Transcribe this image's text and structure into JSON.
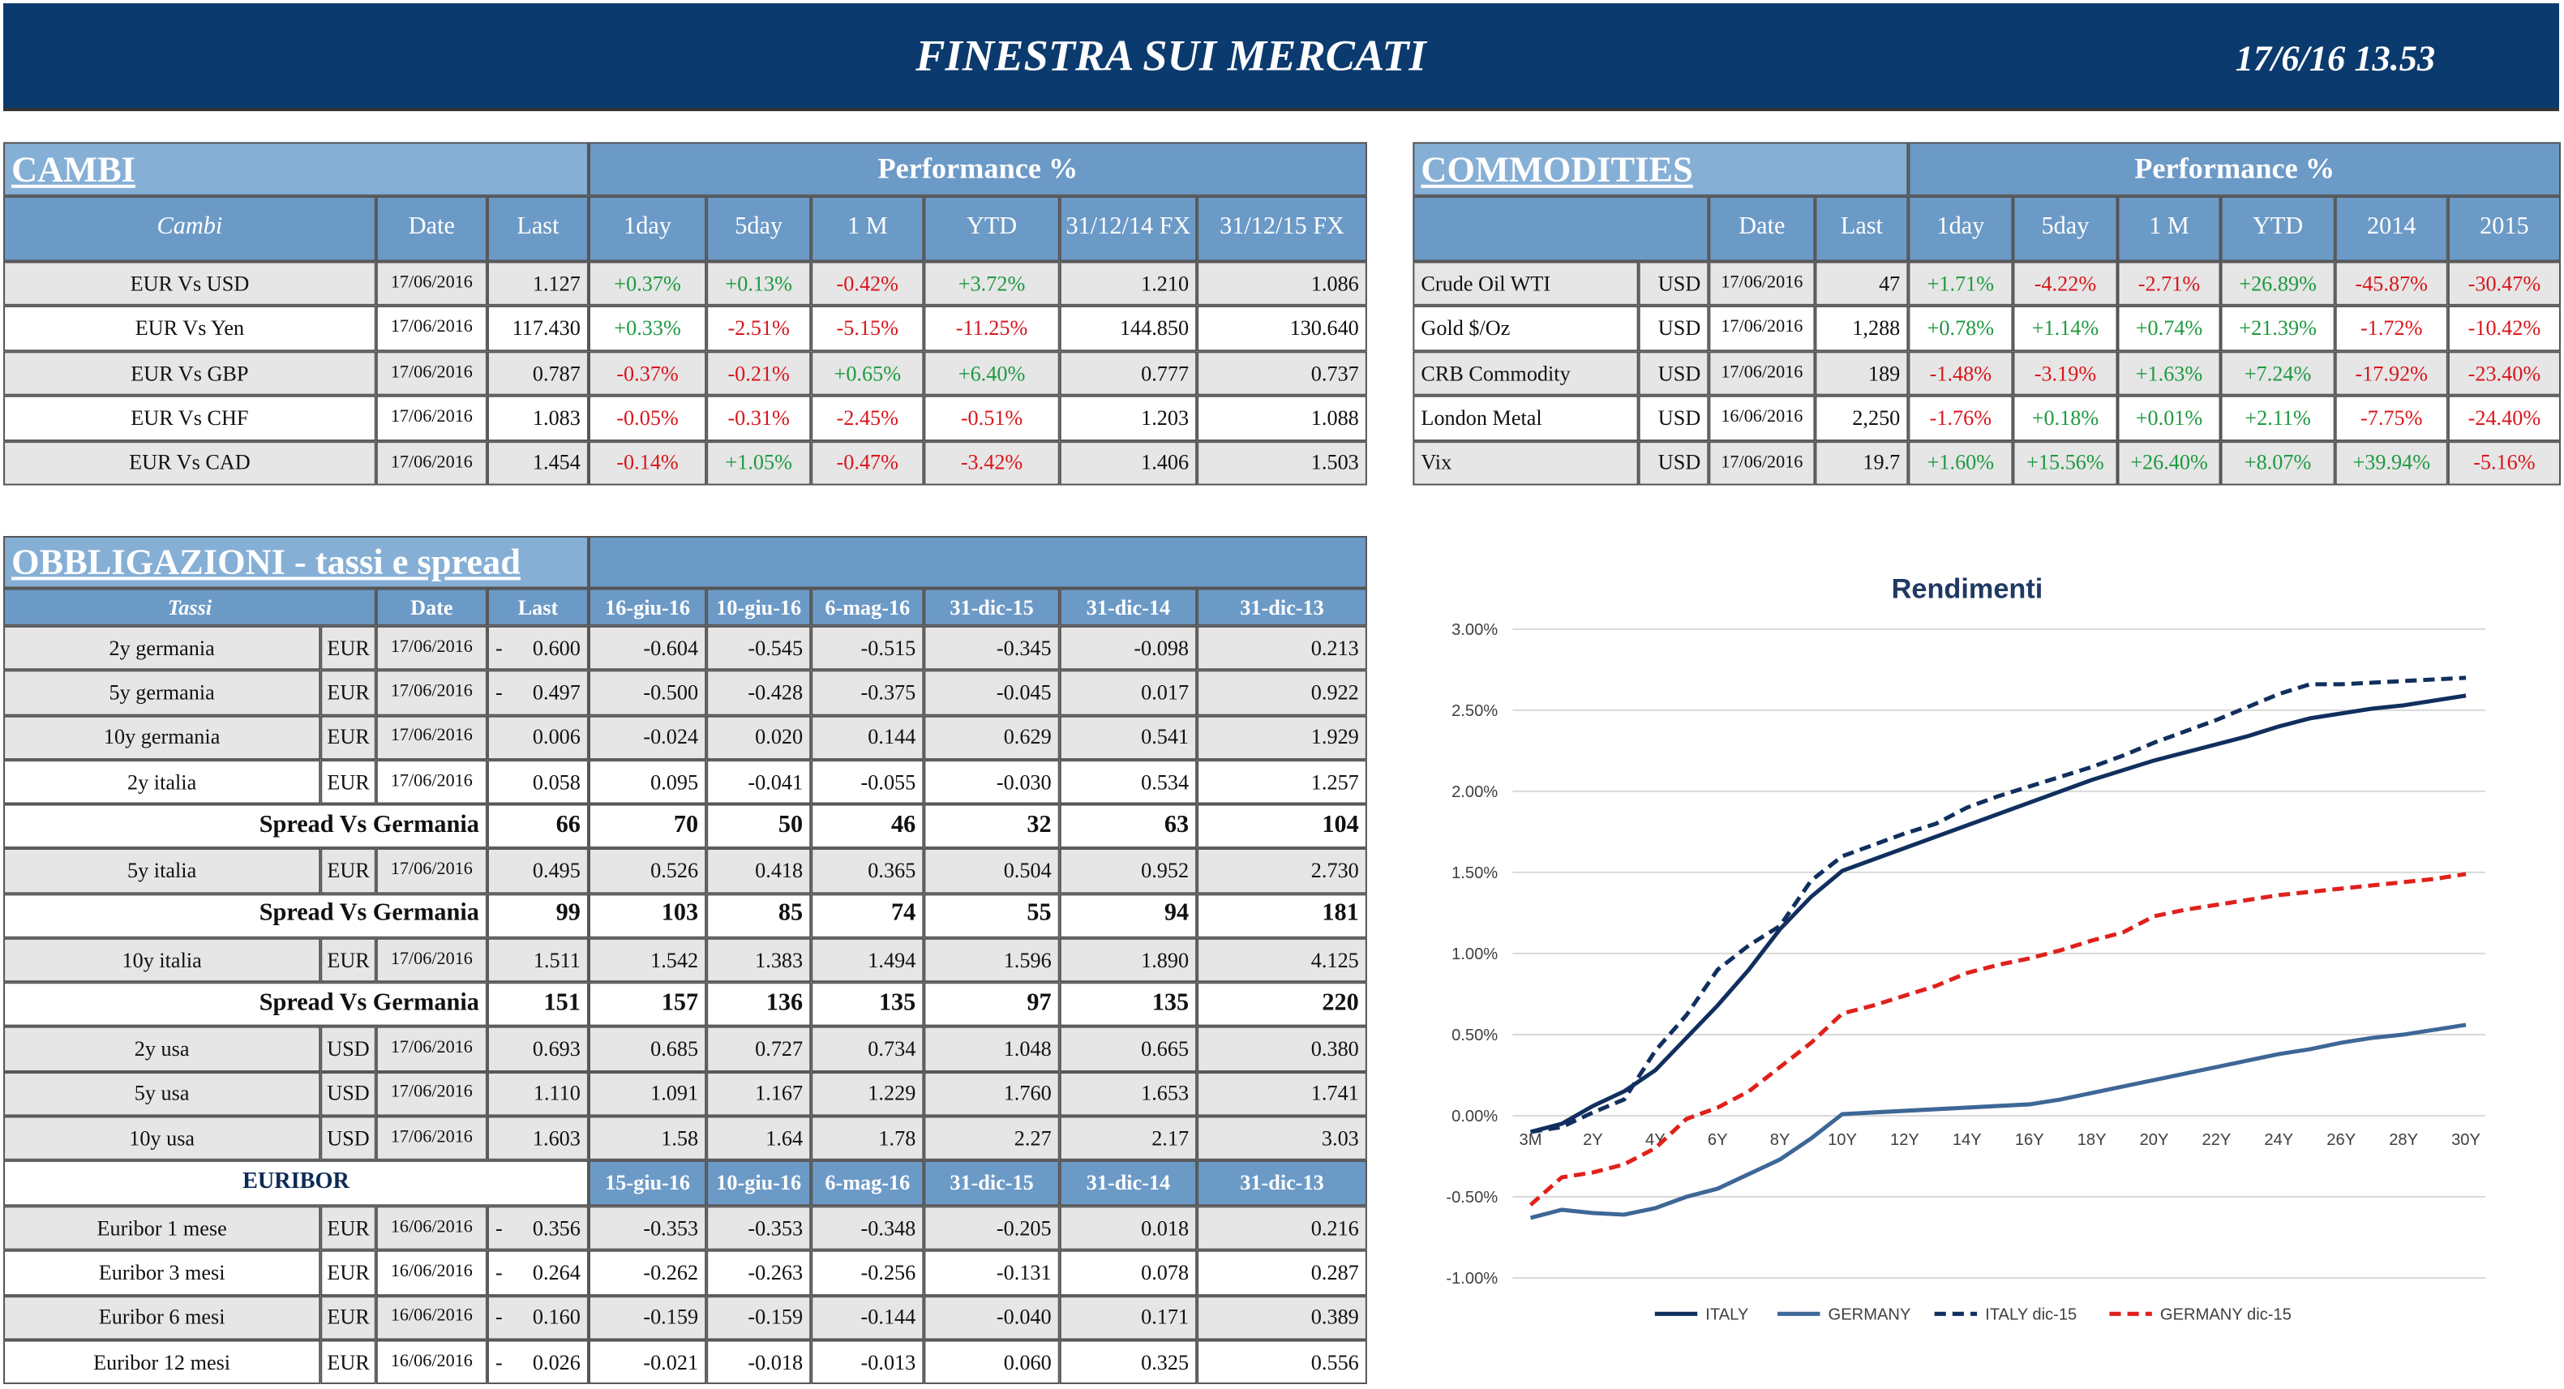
{
  "header": {
    "title": "FINESTRA SUI MERCATI",
    "timestamp": "17/6/16 13.53"
  },
  "cambi": {
    "title": "CAMBI",
    "group": "Performance  %",
    "columns": [
      "Cambi",
      "Date",
      "Last",
      "1day",
      "5day",
      "1 M",
      "YTD",
      "31/12/14 FX",
      "31/12/15  FX"
    ],
    "rows": [
      [
        "EUR Vs USD",
        "17/06/2016",
        "1.127",
        "+0.37%",
        "+0.13%",
        "-0.42%",
        "+3.72%",
        "1.210",
        "1.086"
      ],
      [
        "EUR Vs Yen",
        "17/06/2016",
        "117.430",
        "+0.33%",
        "-2.51%",
        "-5.15%",
        "-11.25%",
        "144.850",
        "130.640"
      ],
      [
        "EUR Vs GBP",
        "17/06/2016",
        "0.787",
        "-0.37%",
        "-0.21%",
        "+0.65%",
        "+6.40%",
        "0.777",
        "0.737"
      ],
      [
        "EUR Vs CHF",
        "17/06/2016",
        "1.083",
        "-0.05%",
        "-0.31%",
        "-2.45%",
        "-0.51%",
        "1.203",
        "1.088"
      ],
      [
        "EUR Vs CAD",
        "17/06/2016",
        "1.454",
        "-0.14%",
        "+1.05%",
        "-0.47%",
        "-3.42%",
        "1.406",
        "1.503"
      ]
    ]
  },
  "commodities": {
    "title": "COMMODITIES",
    "group": "Performance  %",
    "columns": [
      "Date",
      "Last",
      "1day",
      "5day",
      "1 M",
      "YTD",
      "2014",
      "2015"
    ],
    "rows": [
      [
        "Crude Oil WTI",
        "USD",
        "17/06/2016",
        "47",
        "+1.71%",
        "-4.22%",
        "-2.71%",
        "+26.89%",
        "-45.87%",
        "-30.47%"
      ],
      [
        "Gold $/Oz",
        "USD",
        "17/06/2016",
        "1,288",
        "+0.78%",
        "+1.14%",
        "+0.74%",
        "+21.39%",
        "-1.72%",
        "-10.42%"
      ],
      [
        "CRB Commodity",
        "USD",
        "17/06/2016",
        "189",
        "-1.48%",
        "-3.19%",
        "+1.63%",
        "+7.24%",
        "-17.92%",
        "-23.40%"
      ],
      [
        "London Metal",
        "USD",
        "16/06/2016",
        "2,250",
        "-1.76%",
        "+0.18%",
        "+0.01%",
        "+2.11%",
        "-7.75%",
        "-24.40%"
      ],
      [
        "Vix",
        "USD",
        "17/06/2016",
        "19.7",
        "+1.60%",
        "+15.56%",
        "+26.40%",
        "+8.07%",
        "+39.94%",
        "-5.16%"
      ]
    ]
  },
  "obbligazioni": {
    "title": "OBBLIGAZIONI - tassi e spread",
    "columns": [
      "Tassi",
      "Date",
      "Last",
      "16-giu-16",
      "10-giu-16",
      "6-mag-16",
      "31-dic-15",
      "31-dic-14",
      "31-dic-13"
    ],
    "rows": [
      {
        "name": "2y germania",
        "currency": "EUR",
        "date": "17/06/2016",
        "flag": "-",
        "last": "0.600",
        "values": [
          "-0.604",
          "-0.545",
          "-0.515",
          "-0.345",
          "-0.098",
          "0.213"
        ]
      },
      {
        "name": "5y germania",
        "currency": "EUR",
        "date": "17/06/2016",
        "flag": "-",
        "last": "0.497",
        "values": [
          "-0.500",
          "-0.428",
          "-0.375",
          "-0.045",
          "0.017",
          "0.922"
        ]
      },
      {
        "name": "10y germania",
        "currency": "EUR",
        "date": "17/06/2016",
        "last": "0.006",
        "values": [
          "-0.024",
          "0.020",
          "0.144",
          "0.629",
          "0.541",
          "1.929"
        ]
      },
      {
        "name": "2y italia",
        "currency": "EUR",
        "date": "17/06/2016",
        "last": "0.058",
        "values": [
          "0.095",
          "-0.041",
          "-0.055",
          "-0.030",
          "0.534",
          "1.257"
        ]
      },
      {
        "label": "Spread Vs Germania",
        "last": "66",
        "values": [
          "70",
          "50",
          "46",
          "32",
          "63",
          "104"
        ]
      },
      {
        "name": "5y italia",
        "currency": "EUR",
        "date": "17/06/2016",
        "last": "0.495",
        "values": [
          "0.526",
          "0.418",
          "0.365",
          "0.504",
          "0.952",
          "2.730"
        ]
      },
      {
        "label": "Spread Vs Germania",
        "last": "99",
        "values": [
          "103",
          "85",
          "74",
          "55",
          "94",
          "181"
        ]
      },
      {
        "name": "10y italia",
        "currency": "EUR",
        "date": "17/06/2016",
        "last": "1.511",
        "values": [
          "1.542",
          "1.383",
          "1.494",
          "1.596",
          "1.890",
          "4.125"
        ]
      },
      {
        "label": "Spread Vs Germania",
        "last": "151",
        "values": [
          "157",
          "136",
          "135",
          "97",
          "135",
          "220"
        ]
      },
      {
        "name": "2y usa",
        "currency": "USD",
        "date": "17/06/2016",
        "last": "0.693",
        "values": [
          "0.685",
          "0.727",
          "0.734",
          "1.048",
          "0.665",
          "0.380"
        ]
      },
      {
        "name": "5y usa",
        "currency": "USD",
        "date": "17/06/2016",
        "last": "1.110",
        "values": [
          "1.091",
          "1.167",
          "1.229",
          "1.760",
          "1.653",
          "1.741"
        ]
      },
      {
        "name": "10y usa",
        "currency": "USD",
        "date": "17/06/2016",
        "last": "1.603",
        "values": [
          "1.58",
          "1.64",
          "1.78",
          "2.27",
          "2.17",
          "3.03"
        ]
      }
    ]
  },
  "euribor": {
    "title": "EURIBOR",
    "columns": [
      "15-giu-16",
      "10-giu-16",
      "6-mag-16",
      "31-dic-15",
      "31-dic-14",
      "31-dic-13"
    ],
    "rows": [
      {
        "name": "Euribor 1 mese",
        "currency": "EUR",
        "date": "16/06/2016",
        "flag": "-",
        "last": "0.356",
        "values": [
          "-0.353",
          "-0.353",
          "-0.348",
          "-0.205",
          "0.018",
          "0.216"
        ]
      },
      {
        "name": "Euribor 3 mesi",
        "currency": "EUR",
        "date": "16/06/2016",
        "flag": "-",
        "last": "0.264",
        "values": [
          "-0.262",
          "-0.263",
          "-0.256",
          "-0.131",
          "0.078",
          "0.287"
        ]
      },
      {
        "name": "Euribor 6 mesi",
        "currency": "EUR",
        "date": "16/06/2016",
        "flag": "-",
        "last": "0.160",
        "values": [
          "-0.159",
          "-0.159",
          "-0.144",
          "-0.040",
          "0.171",
          "0.389"
        ]
      },
      {
        "name": "Euribor 12 mesi",
        "currency": "EUR",
        "date": "16/06/2016",
        "flag": "-",
        "last": "0.026",
        "values": [
          "-0.021",
          "-0.018",
          "-0.013",
          "0.060",
          "0.325",
          "0.556"
        ]
      }
    ]
  },
  "chart_data": {
    "type": "line",
    "title": "Rendimenti",
    "categories": [
      "3M",
      null,
      "2Y",
      null,
      "4Y",
      null,
      "6Y",
      null,
      "8Y",
      null,
      "10Y",
      null,
      "12Y",
      null,
      "14Y",
      null,
      "16Y",
      null,
      "18Y",
      null,
      "20Y",
      null,
      "22Y",
      null,
      "24Y",
      null,
      "26Y",
      null,
      "28Y",
      null,
      "30Y"
    ],
    "series": [
      {
        "name": "ITALY",
        "color": "#102f5e",
        "style": "solid",
        "values": [
          -0.1,
          -0.05,
          0.06,
          0.15,
          0.28,
          0.48,
          0.68,
          0.9,
          1.15,
          1.35,
          1.51,
          1.58,
          1.65,
          1.72,
          1.79,
          1.86,
          1.93,
          2.0,
          2.07,
          2.13,
          2.19,
          2.24,
          2.29,
          2.34,
          2.4,
          2.45,
          2.48,
          2.51,
          2.53,
          2.56,
          2.59
        ]
      },
      {
        "name": "GERMANY",
        "color": "#3d6796",
        "style": "solid",
        "values": [
          -0.63,
          -0.58,
          -0.6,
          -0.61,
          -0.57,
          -0.5,
          -0.45,
          -0.36,
          -0.27,
          -0.14,
          0.01,
          0.02,
          0.03,
          0.04,
          0.05,
          0.06,
          0.07,
          0.1,
          0.14,
          0.18,
          0.22,
          0.26,
          0.3,
          0.34,
          0.38,
          0.41,
          0.45,
          0.48,
          0.5,
          0.53,
          0.56
        ]
      },
      {
        "name": "ITALY dic-15",
        "color": "#102f5e",
        "style": "dashed",
        "values": [
          -0.1,
          -0.07,
          0.02,
          0.1,
          0.4,
          0.62,
          0.9,
          1.05,
          1.17,
          1.45,
          1.6,
          1.67,
          1.74,
          1.8,
          1.9,
          1.97,
          2.03,
          2.09,
          2.15,
          2.22,
          2.3,
          2.37,
          2.44,
          2.52,
          2.6,
          2.66,
          2.66,
          2.67,
          2.68,
          2.69,
          2.7
        ]
      },
      {
        "name": "GERMANY dic-15",
        "color": "#e0201b",
        "style": "dashed",
        "values": [
          -0.55,
          -0.38,
          -0.35,
          -0.3,
          -0.2,
          -0.02,
          0.05,
          0.15,
          0.3,
          0.45,
          0.63,
          0.68,
          0.74,
          0.8,
          0.88,
          0.93,
          0.97,
          1.02,
          1.08,
          1.13,
          1.23,
          1.27,
          1.3,
          1.33,
          1.36,
          1.38,
          1.4,
          1.42,
          1.44,
          1.46,
          1.49
        ]
      }
    ],
    "ylim": [
      -1,
      3
    ],
    "yticks": [
      {
        "value": -1,
        "label": "-1.00%"
      },
      {
        "value": -0.5,
        "label": "-0.50%"
      },
      {
        "value": 0,
        "label": "0.00%"
      },
      {
        "value": 0.5,
        "label": "0.50%"
      },
      {
        "value": 1,
        "label": "1.00%"
      },
      {
        "value": 1.5,
        "label": "1.50%"
      },
      {
        "value": 2,
        "label": "2.00%"
      },
      {
        "value": 2.5,
        "label": "2.50%"
      },
      {
        "value": 3,
        "label": "3.00%"
      }
    ],
    "grid": true,
    "legend": "bottom"
  }
}
